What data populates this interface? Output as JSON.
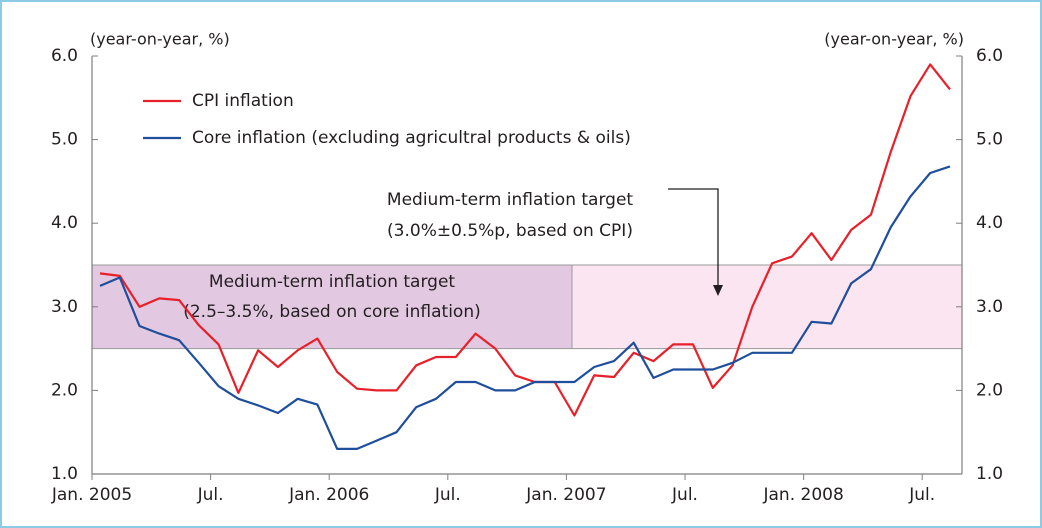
{
  "chart_data": {
    "type": "line",
    "y_axis_label": "(year-on-year, %)",
    "y2_axis_label": "(year-on-year, %)",
    "categories": [
      "Jan. 2005",
      null,
      null,
      null,
      null,
      null,
      "Jul.",
      null,
      null,
      null,
      null,
      null,
      "Jan. 2006",
      null,
      null,
      null,
      null,
      null,
      "Jul.",
      null,
      null,
      null,
      null,
      null,
      "Jan. 2007",
      null,
      null,
      null,
      null,
      null,
      "Jul.",
      null,
      null,
      null,
      null,
      null,
      "Jan. 2008",
      null,
      null,
      null,
      null,
      null,
      "Jul.",
      null
    ],
    "series": [
      {
        "name": "CPI inflation",
        "color": "#e8202a",
        "values": [
          3.4,
          3.37,
          3.0,
          3.1,
          3.08,
          2.78,
          2.55,
          1.97,
          2.48,
          2.28,
          2.48,
          2.62,
          2.22,
          2.02,
          2.0,
          2.0,
          2.3,
          2.4,
          2.4,
          2.68,
          2.5,
          2.18,
          2.1,
          2.1,
          1.7,
          2.18,
          2.16,
          2.45,
          2.35,
          2.55,
          2.55,
          2.03,
          2.3,
          3.0,
          3.52,
          3.6,
          3.88,
          3.56,
          3.92,
          4.1,
          4.85,
          5.52,
          5.9,
          5.6
        ]
      },
      {
        "name": "Core inflation (excluding agricultral products & oils)",
        "color": "#1f4e9c",
        "values": [
          3.25,
          3.35,
          2.77,
          2.68,
          2.6,
          2.33,
          2.05,
          1.9,
          1.82,
          1.73,
          1.9,
          1.83,
          1.3,
          1.3,
          1.4,
          1.5,
          1.8,
          1.9,
          2.1,
          2.1,
          2.0,
          2.0,
          2.1,
          2.1,
          2.1,
          2.28,
          2.35,
          2.57,
          2.15,
          2.25,
          2.25,
          2.25,
          2.33,
          2.45,
          2.45,
          2.45,
          2.82,
          2.8,
          3.28,
          3.45,
          3.95,
          4.32,
          4.6,
          4.68
        ]
      }
    ],
    "bands": [
      {
        "range": [
          2.5,
          3.5
        ],
        "color": "#e2c9e1",
        "label": [
          "Medium-term inflation target",
          "(2.5–3.5%, based on core inflation)"
        ]
      },
      {
        "range": [
          2.5,
          3.5
        ],
        "color": "#fbe5f0",
        "label": [
          "Medium-term inflation target",
          "(3.0%±0.5%p, based on CPI)"
        ]
      }
    ],
    "ylim": [
      1,
      6
    ],
    "yticks": [
      {
        "value": 1,
        "label": "1.0"
      },
      {
        "value": 2,
        "label": "2.0"
      },
      {
        "value": 3,
        "label": "3.0"
      },
      {
        "value": 4,
        "label": "4.0"
      },
      {
        "value": 5,
        "label": "5.0"
      },
      {
        "value": 6,
        "label": "6.0"
      }
    ],
    "y2lim": [
      1,
      6
    ],
    "y2ticks": [
      {
        "value": 1,
        "label": "1.0"
      },
      {
        "value": 2,
        "label": "2.0"
      },
      {
        "value": 3,
        "label": "3.0"
      },
      {
        "value": 4,
        "label": "4.0"
      },
      {
        "value": 5,
        "label": "5.0"
      },
      {
        "value": 6,
        "label": "6.0"
      }
    ]
  }
}
